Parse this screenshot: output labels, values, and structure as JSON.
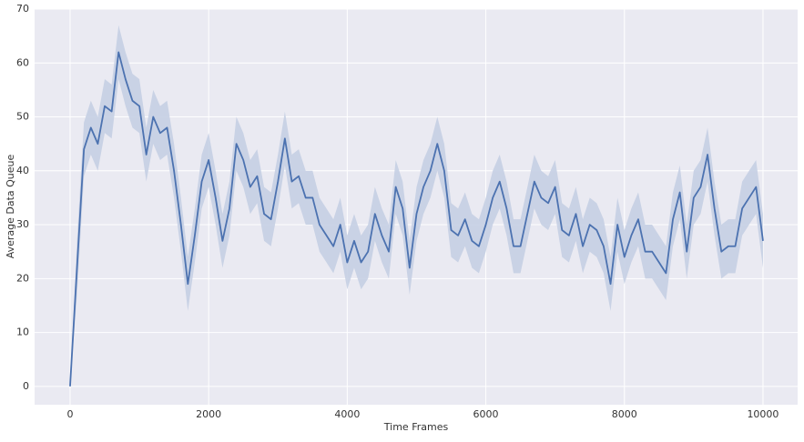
{
  "chart_data": {
    "type": "line",
    "xlabel": "Time Frames",
    "ylabel": "Average Data Queue",
    "x": [
      0,
      100,
      200,
      300,
      400,
      500,
      600,
      700,
      800,
      900,
      1000,
      1100,
      1200,
      1300,
      1400,
      1500,
      1600,
      1700,
      1800,
      1900,
      2000,
      2100,
      2200,
      2300,
      2400,
      2500,
      2600,
      2700,
      2800,
      2900,
      3000,
      3100,
      3200,
      3300,
      3400,
      3500,
      3600,
      3700,
      3800,
      3900,
      4000,
      4100,
      4200,
      4300,
      4400,
      4500,
      4600,
      4700,
      4800,
      4900,
      5000,
      5100,
      5200,
      5300,
      5400,
      5500,
      5600,
      5700,
      5800,
      5900,
      6000,
      6100,
      6200,
      6300,
      6400,
      6500,
      6600,
      6700,
      6800,
      6900,
      7000,
      7100,
      7200,
      7300,
      7400,
      7500,
      7600,
      7700,
      7800,
      7900,
      8000,
      8100,
      8200,
      8300,
      8400,
      8500,
      8600,
      8700,
      8800,
      8900,
      9000,
      9100,
      9200,
      9300,
      9400,
      9500,
      9600,
      9700,
      9800,
      9900,
      10000
    ],
    "values": [
      0,
      22,
      44,
      48,
      45,
      52,
      51,
      62,
      57,
      53,
      52,
      43,
      50,
      47,
      48,
      40,
      30,
      19,
      28,
      38,
      42,
      35,
      27,
      33,
      45,
      42,
      37,
      39,
      32,
      31,
      38,
      46,
      38,
      39,
      35,
      35,
      30,
      28,
      26,
      30,
      23,
      27,
      23,
      25,
      32,
      28,
      25,
      37,
      33,
      22,
      32,
      37,
      40,
      45,
      40,
      29,
      28,
      31,
      27,
      26,
      30,
      35,
      38,
      33,
      26,
      26,
      32,
      38,
      35,
      34,
      37,
      29,
      28,
      32,
      26,
      30,
      29,
      26,
      19,
      30,
      24,
      28,
      31,
      25,
      25,
      23,
      21,
      31,
      36,
      25,
      35,
      37,
      43,
      33,
      25,
      26,
      26,
      33,
      35,
      37,
      27
    ],
    "ci_lower": [
      0,
      17,
      39,
      43,
      40,
      47,
      46,
      57,
      52,
      48,
      47,
      38,
      45,
      42,
      43,
      35,
      25,
      14,
      23,
      33,
      37,
      30,
      22,
      28,
      40,
      37,
      32,
      34,
      27,
      26,
      33,
      41,
      33,
      34,
      30,
      30,
      25,
      23,
      21,
      25,
      18,
      22,
      18,
      20,
      27,
      23,
      20,
      32,
      28,
      17,
      27,
      32,
      35,
      40,
      35,
      24,
      23,
      26,
      22,
      21,
      25,
      30,
      33,
      28,
      21,
      21,
      27,
      33,
      30,
      29,
      32,
      24,
      23,
      27,
      21,
      25,
      24,
      21,
      14,
      25,
      19,
      23,
      26,
      20,
      20,
      18,
      16,
      26,
      31,
      20,
      30,
      32,
      38,
      28,
      20,
      21,
      21,
      28,
      30,
      32,
      22
    ],
    "ci_upper": [
      0,
      27,
      49,
      53,
      50,
      57,
      56,
      67,
      62,
      58,
      57,
      48,
      55,
      52,
      53,
      45,
      35,
      24,
      33,
      43,
      47,
      40,
      32,
      38,
      50,
      47,
      42,
      44,
      37,
      36,
      43,
      51,
      43,
      44,
      40,
      40,
      35,
      33,
      31,
      35,
      28,
      32,
      28,
      30,
      37,
      33,
      30,
      42,
      38,
      27,
      37,
      42,
      45,
      50,
      45,
      34,
      33,
      36,
      32,
      31,
      35,
      40,
      43,
      38,
      31,
      31,
      37,
      43,
      40,
      39,
      42,
      34,
      33,
      37,
      31,
      35,
      34,
      31,
      24,
      35,
      29,
      33,
      36,
      30,
      30,
      28,
      26,
      36,
      41,
      30,
      40,
      42,
      48,
      38,
      30,
      31,
      31,
      38,
      40,
      42,
      32
    ],
    "color": "#4c72b0",
    "band_color": "#c5cfe3",
    "xlim": [
      -512,
      10500
    ],
    "ylim": [
      -3.4,
      70
    ],
    "xticks": [
      0,
      2000,
      4000,
      6000,
      8000,
      10000
    ],
    "yticks": [
      0,
      10,
      20,
      30,
      40,
      50,
      60,
      70
    ],
    "grid": true
  }
}
